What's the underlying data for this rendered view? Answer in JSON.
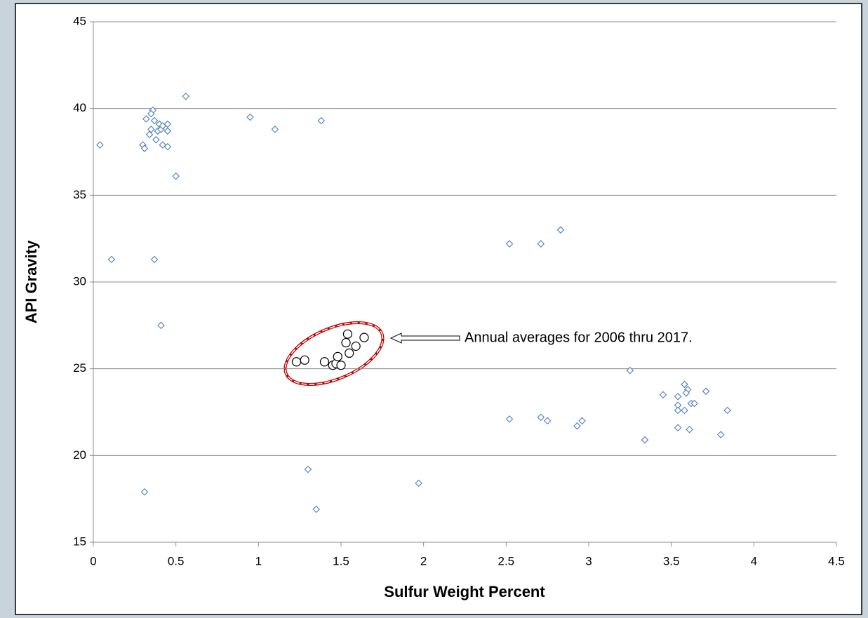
{
  "chart_data": {
    "type": "scatter",
    "xlabel": "Sulfur Weight Percent",
    "ylabel": "API Gravity",
    "annotation": "Annual averages for 2006 thru 2017.",
    "xlim": [
      0,
      4.5
    ],
    "xticks": [
      0,
      0.5,
      1,
      1.5,
      2,
      2.5,
      3,
      3.5,
      4,
      4.5
    ],
    "ylim": [
      15,
      45
    ],
    "yticks": [
      15,
      20,
      25,
      30,
      35,
      40,
      45
    ],
    "grid": true,
    "series": [
      {
        "marker": "diamond",
        "color": "#4a7ebb",
        "x": [
          0.04,
          0.11,
          0.32,
          0.3,
          0.31,
          0.34,
          0.35,
          0.36,
          0.35,
          0.37,
          0.38,
          0.39,
          0.4,
          0.41,
          0.42,
          0.42,
          0.45,
          0.45,
          0.45,
          0.5,
          0.56,
          0.37,
          0.41,
          0.31,
          0.95,
          1.1,
          1.38,
          1.3,
          1.35,
          1.97,
          2.52,
          2.71,
          2.83,
          2.52,
          2.71,
          2.75,
          2.93,
          2.96,
          3.25,
          3.34,
          3.45,
          3.58,
          3.6,
          3.59,
          3.54,
          3.54,
          3.54,
          3.58,
          3.62,
          3.64,
          3.54,
          3.61,
          3.71,
          3.8,
          3.84
        ],
        "values": [
          37.9,
          31.3,
          39.4,
          37.9,
          37.7,
          38.5,
          38.8,
          39.9,
          39.7,
          39.3,
          38.2,
          38.7,
          39.1,
          38.8,
          37.9,
          39.0,
          39.1,
          38.7,
          37.8,
          36.1,
          40.7,
          31.3,
          27.5,
          17.9,
          39.5,
          38.8,
          39.3,
          19.2,
          16.9,
          18.4,
          32.2,
          32.2,
          33.0,
          22.1,
          22.2,
          22.0,
          21.7,
          22.0,
          24.9,
          20.9,
          23.5,
          24.1,
          23.8,
          23.6,
          23.4,
          22.9,
          22.6,
          22.6,
          23.0,
          23.0,
          21.6,
          21.5,
          23.7,
          21.2,
          22.6
        ]
      },
      {
        "marker": "circle",
        "color": "#000000",
        "x": [
          1.23,
          1.28,
          1.4,
          1.45,
          1.47,
          1.5,
          1.48,
          1.53,
          1.54,
          1.55,
          1.59,
          1.64
        ],
        "values": [
          25.4,
          25.5,
          25.4,
          25.2,
          25.3,
          25.2,
          25.7,
          26.5,
          27.0,
          25.9,
          26.3,
          26.8
        ]
      }
    ]
  }
}
